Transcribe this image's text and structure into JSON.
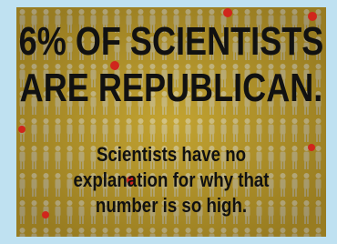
{
  "headline": [
    "6% OF SCIENTISTS",
    "ARE REPUBLICAN."
  ],
  "caption": [
    "Scientists have no",
    "explanation for why that",
    "number is so high."
  ]
}
